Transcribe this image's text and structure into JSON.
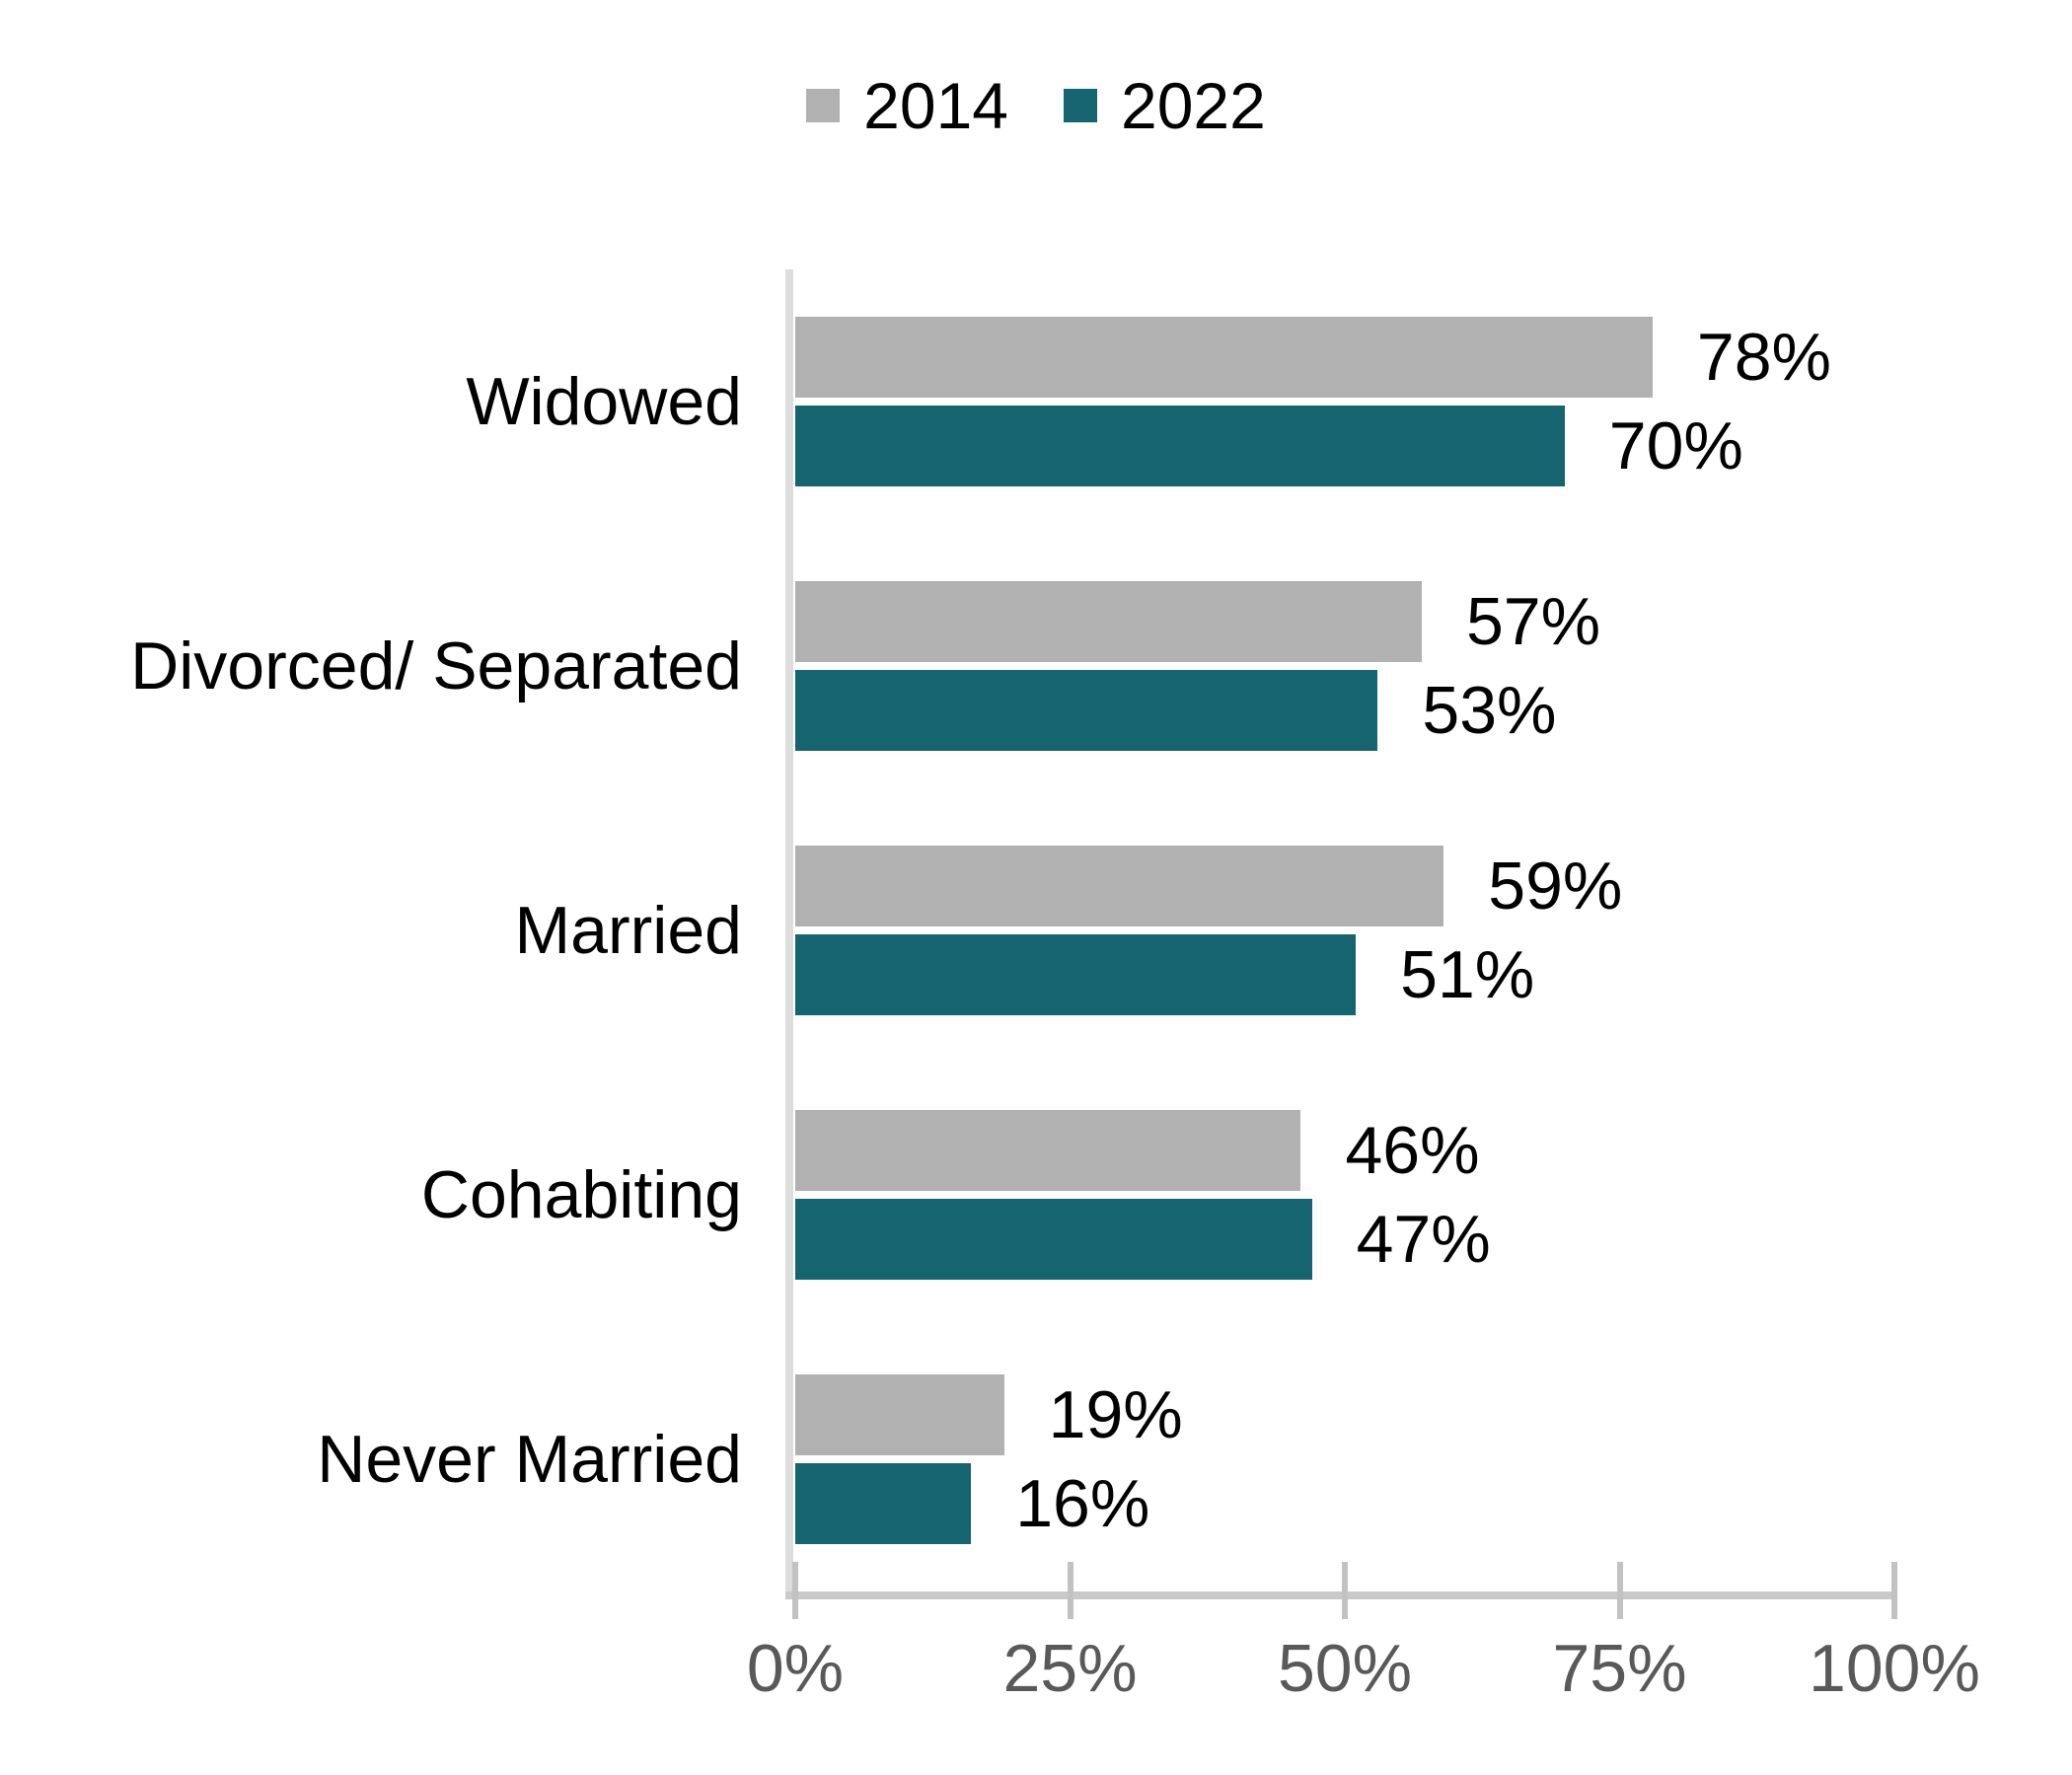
{
  "chart_data": {
    "type": "bar",
    "orientation": "horizontal",
    "title": "",
    "categories": [
      "Widowed",
      "Divorced/ Separated",
      "Married",
      "Cohabiting",
      "Never Married"
    ],
    "series": [
      {
        "name": "2014",
        "color": "#B1B1B1",
        "values": [
          78,
          57,
          59,
          46,
          19
        ]
      },
      {
        "name": "2022",
        "color": "#16646F",
        "values": [
          70,
          53,
          51,
          47,
          16
        ]
      }
    ],
    "data_label_format": "{v}%",
    "x_ticks": [
      "0%",
      "25%",
      "50%",
      "75%",
      "100%"
    ],
    "x_tick_values": [
      0,
      25,
      50,
      75,
      100
    ],
    "xlim": [
      0,
      100
    ],
    "legend_position": "top",
    "grid": false
  },
  "colors": {
    "background": "#FFFFFF",
    "series_2014": "#B1B1B1",
    "series_2022": "#16646F",
    "y_axis_line": "#DDDDDD",
    "x_axis_line": "#C9C9C9",
    "tick_mark": "#C2C2C2",
    "tick_label_text": "#595959",
    "label_text": "#000000"
  }
}
